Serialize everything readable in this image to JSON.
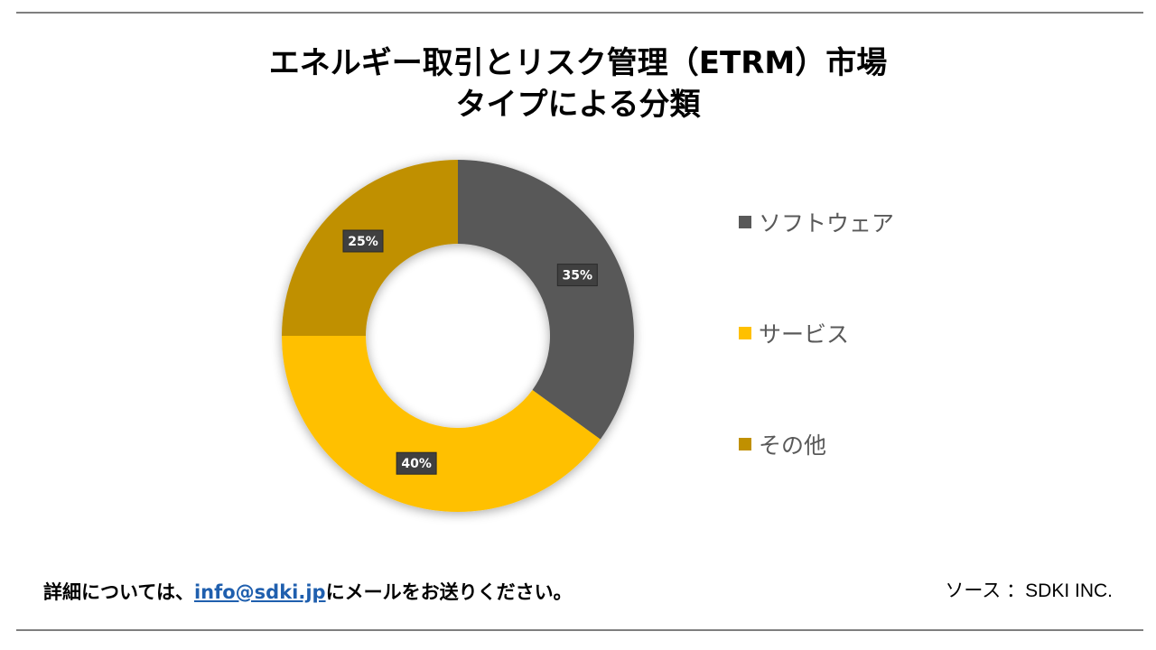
{
  "header": {
    "title_line1": "エネルギー取引とリスク管理（ETRM）市場",
    "title_line2": "タイプによる分類"
  },
  "chart_data": {
    "type": "pie",
    "donut": true,
    "categories": [
      "ソフトウェア",
      "サービス",
      "その他"
    ],
    "values": [
      35,
      40,
      25
    ],
    "labels": [
      "35%",
      "40%",
      "25%"
    ],
    "colors": [
      "#595959",
      "#ffc000",
      "#c09000"
    ],
    "legend_position": "right"
  },
  "legend": {
    "items": [
      {
        "label": "ソフトウェア",
        "color": "#595959"
      },
      {
        "label": " サービス",
        "color": "#ffc000"
      },
      {
        "label": "その他",
        "color": "#c09000"
      }
    ]
  },
  "footer": {
    "contact_prefix": "詳細については、",
    "contact_email": "info@sdki.jp",
    "contact_suffix": "にメールをお送りください。",
    "source": "ソース ：SDKI INC."
  }
}
